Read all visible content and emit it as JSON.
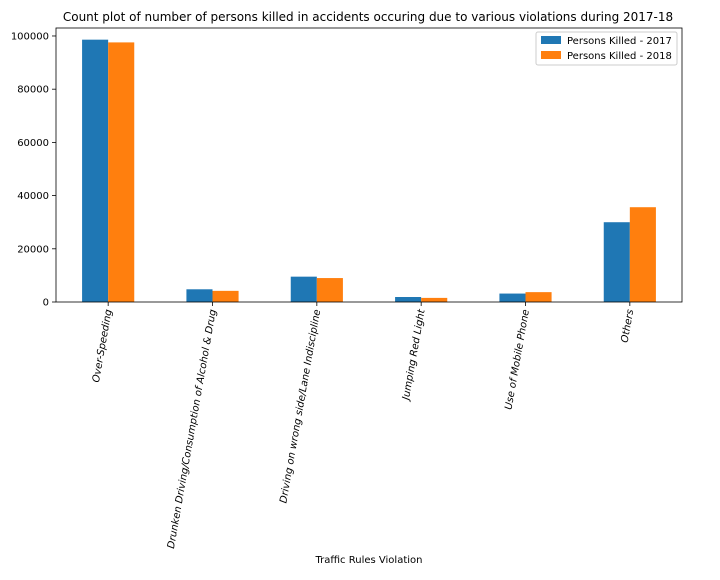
{
  "chart_data": {
    "type": "bar",
    "title": "Count plot of number of persons killed in accidents occuring due to various violations during 2017-18",
    "xlabel": "Traffic Rules Violation",
    "ylabel": "",
    "ylim": [
      0,
      103000
    ],
    "yticks": [
      0,
      20000,
      40000,
      60000,
      80000,
      100000
    ],
    "grid": false,
    "legend_position": "top-right",
    "categories": [
      "Over-Speeding",
      "Drunken Driving/Consumption of Alcohol & Drug",
      "Driving on wrong side/Lane Indiscipline",
      "Jumping Red Light",
      "Use of Mobile Phone",
      "Others"
    ],
    "series": [
      {
        "name": "Persons Killed - 2017",
        "color": "#1f77b4",
        "values": [
          98613,
          4776,
          9527,
          1876,
          3172,
          29990
        ]
      },
      {
        "name": "Persons Killed - 2018",
        "color": "#ff7f0e",
        "values": [
          97588,
          4188,
          9000,
          1545,
          3707,
          35634
        ]
      }
    ]
  }
}
